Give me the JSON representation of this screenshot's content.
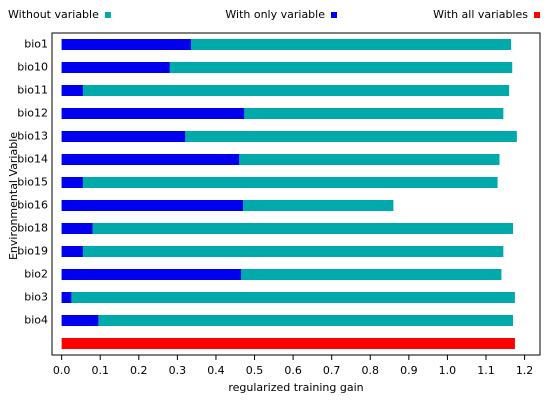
{
  "chart_data": {
    "type": "bar",
    "orientation": "horizontal",
    "xlabel": "regularized training gain",
    "ylabel": "Environmental Variable",
    "categories": [
      "bio1",
      "bio10",
      "bio11",
      "bio12",
      "bio13",
      "bio14",
      "bio15",
      "bio16",
      "bio18",
      "bio19",
      "bio2",
      "bio3",
      "bio4",
      null
    ],
    "series": [
      {
        "name": "Without variable",
        "color": "#00aaaa",
        "values": [
          1.165,
          1.168,
          1.16,
          1.145,
          1.18,
          1.135,
          1.13,
          0.86,
          1.17,
          1.145,
          1.14,
          1.175,
          1.17,
          null
        ]
      },
      {
        "name": "With only variable",
        "color": "#0000ee",
        "values": [
          0.335,
          0.28,
          0.055,
          0.473,
          0.32,
          0.46,
          0.055,
          0.47,
          0.08,
          0.055,
          0.465,
          0.025,
          0.095,
          null
        ]
      },
      {
        "name": "With all variables",
        "color": "#ff0000",
        "values": [
          null,
          null,
          null,
          null,
          null,
          null,
          null,
          null,
          null,
          null,
          null,
          null,
          null,
          1.175
        ]
      }
    ],
    "xlim": [
      -0.025,
      1.24
    ],
    "xticks": [
      {
        "value": 0,
        "label": "0.0"
      },
      0.1,
      0.2,
      0.3,
      0.4,
      0.5,
      0.6,
      0.7,
      0.8,
      0.9,
      {
        "value": 1,
        "label": "1.0"
      },
      1.1,
      1.2
    ]
  }
}
